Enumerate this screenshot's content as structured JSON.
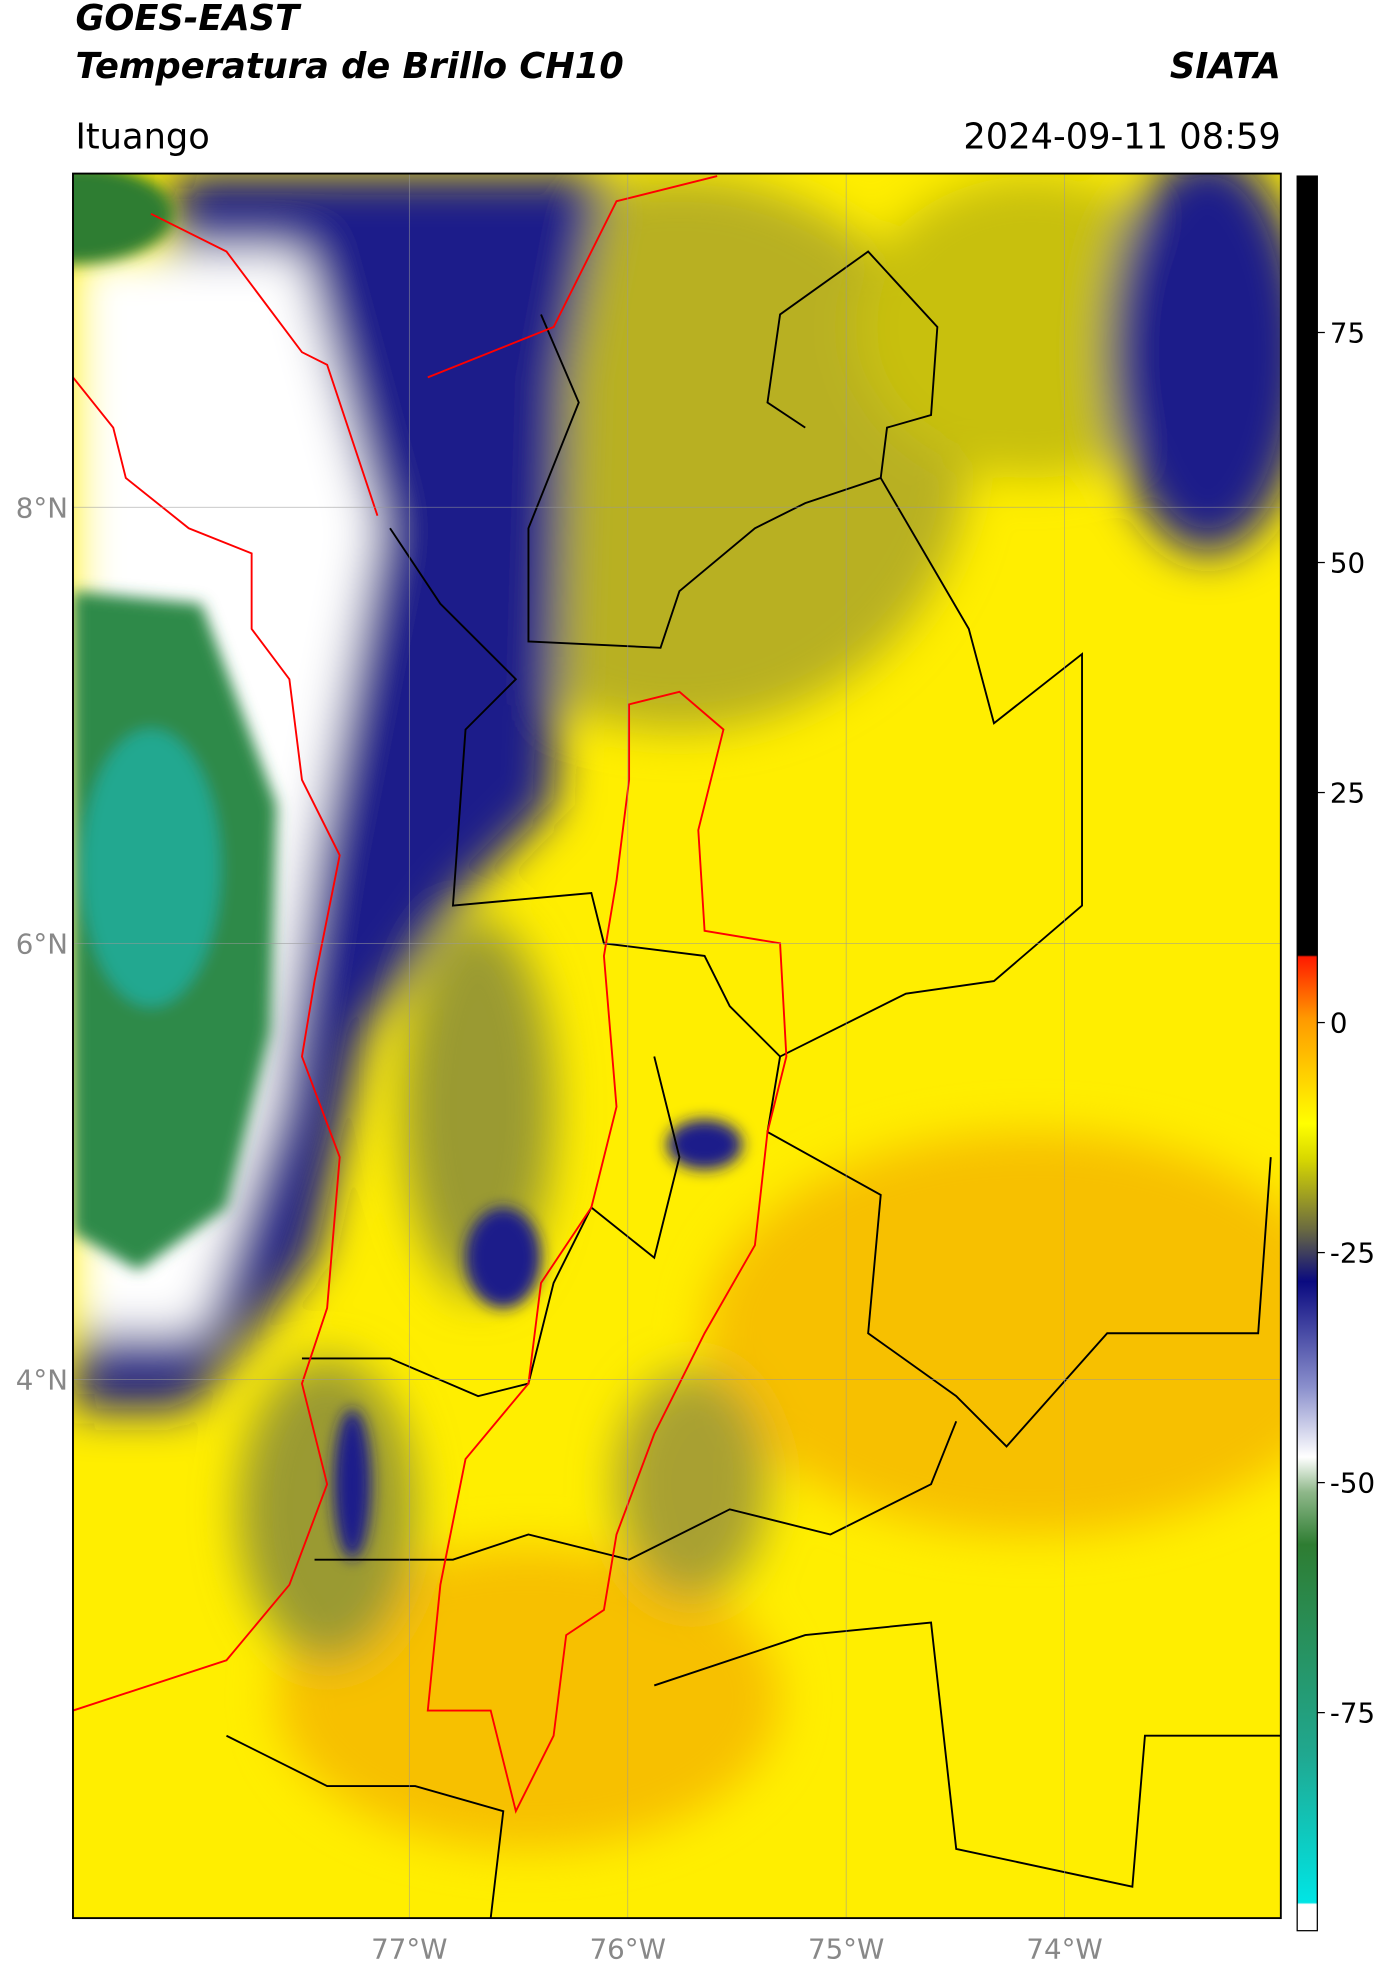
{
  "header": {
    "title": "GOES-EAST",
    "subtitle": "Temperatura de Brillo CH10",
    "organization": "SIATA",
    "location": "Ituango",
    "datetime": "2024-09-11 08:59"
  },
  "map": {
    "xlim": [
      -78.54,
      -73.01
    ],
    "ylim": [
      1.53,
      9.53
    ],
    "xticks": [
      {
        "value": -77,
        "label": "77°W"
      },
      {
        "value": -76,
        "label": "76°W"
      },
      {
        "value": -75,
        "label": "75°W"
      },
      {
        "value": -74,
        "label": "74°W"
      }
    ],
    "yticks": [
      {
        "value": 8,
        "label": "8°N"
      },
      {
        "value": 6,
        "label": "6°N"
      },
      {
        "value": 4,
        "label": "4°N"
      }
    ]
  },
  "colorbar": {
    "lim": [
      -98.7,
      92
    ],
    "ticks": [
      75,
      50,
      25,
      0,
      -25,
      -50,
      -75
    ]
  }
}
